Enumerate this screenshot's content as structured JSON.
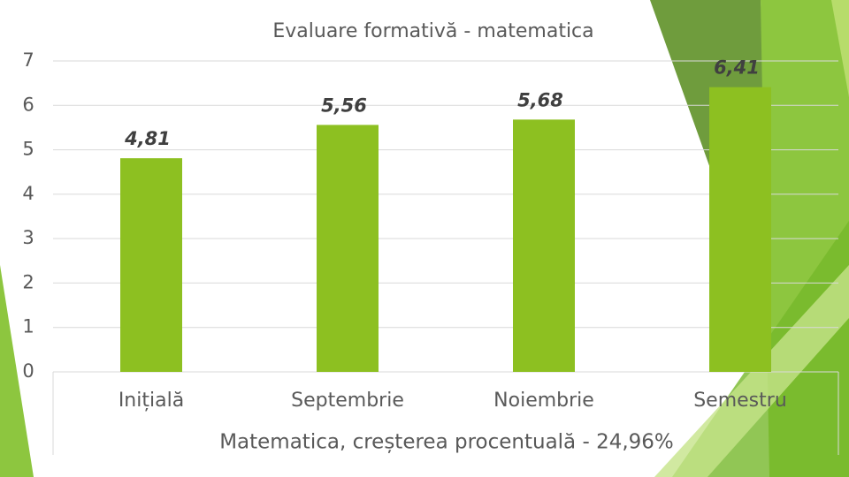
{
  "chart_data": {
    "type": "bar",
    "title": "Evaluare formativă - matematica",
    "x_label": "Matematica, creșterea procentuală - 24,96%",
    "categories": [
      "Inițială",
      "Septembrie",
      "Noiembrie",
      "Semestru"
    ],
    "values": [
      4.81,
      5.56,
      5.68,
      6.41
    ],
    "value_labels": [
      "4,81",
      "5,56",
      "5,68",
      "6,41"
    ],
    "color": "#8dc021",
    "ylim": [
      0,
      7
    ],
    "yticks": [
      0,
      1,
      2,
      3,
      4,
      5,
      6,
      7
    ],
    "grid": true
  }
}
